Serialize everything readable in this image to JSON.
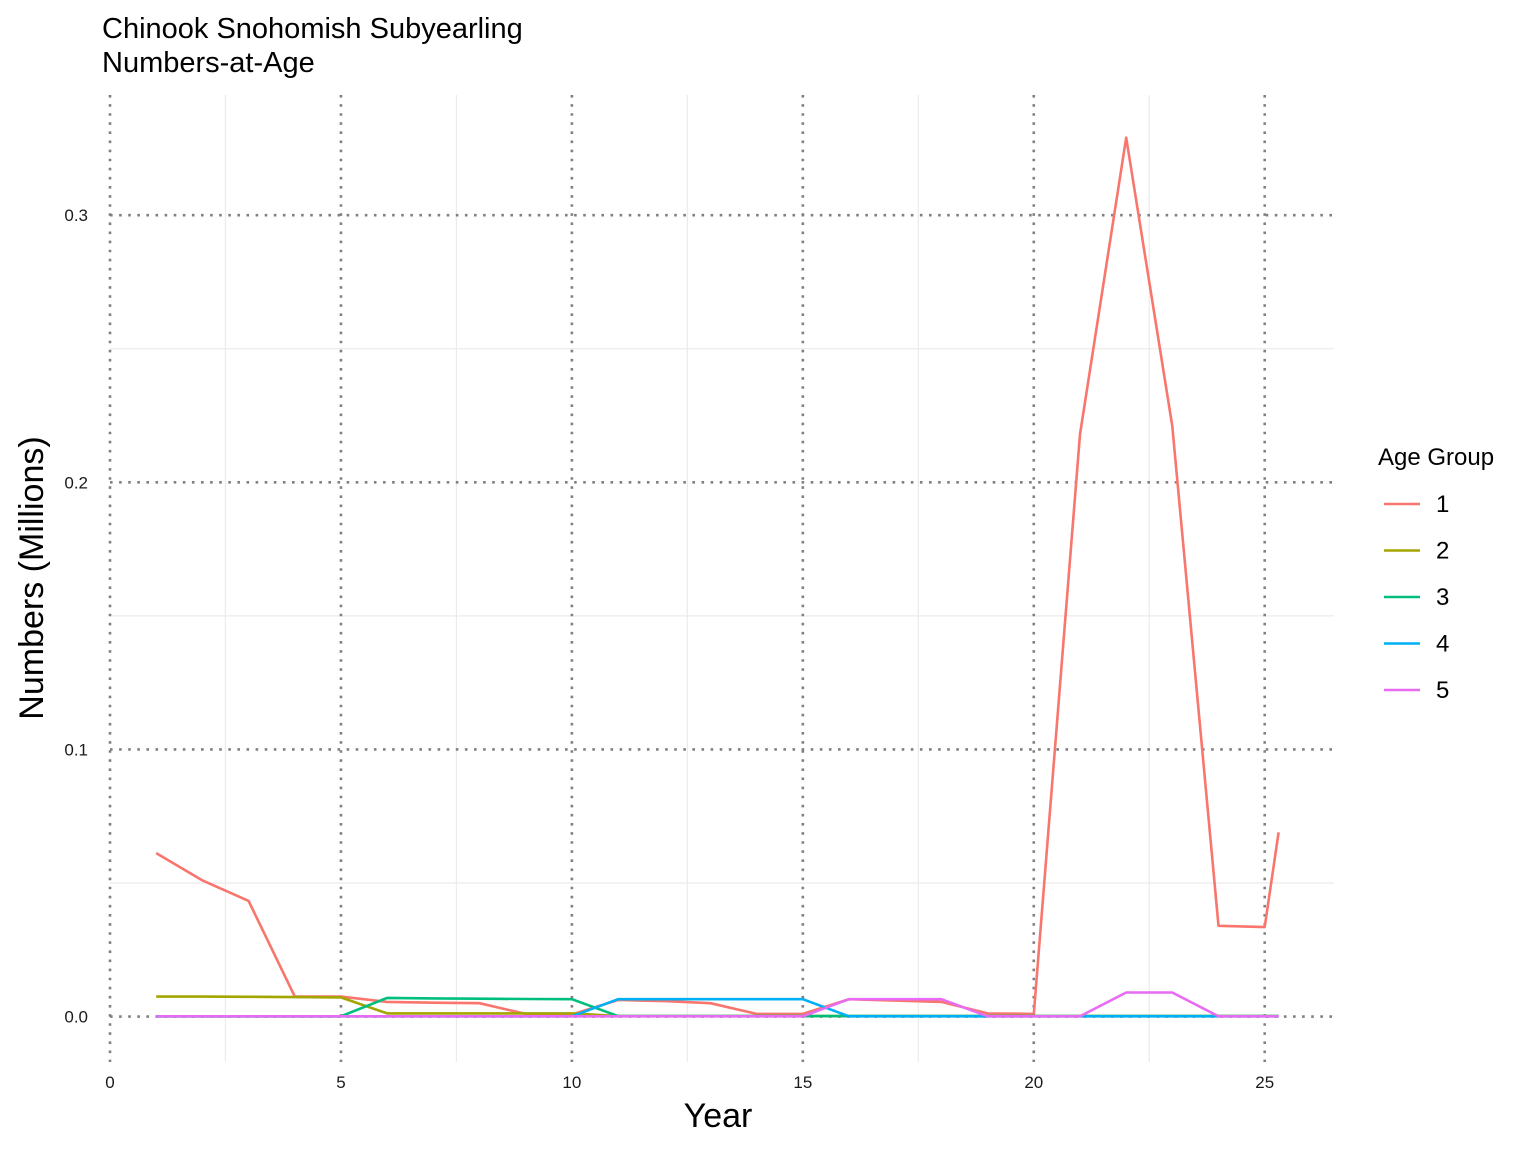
{
  "chart_data": {
    "type": "line",
    "title": "Chinook Snohomish Subyearling",
    "subtitle": "Numbers-at-Age",
    "xlabel": "Year",
    "ylabel": "Numbers (Millions)",
    "xlim": [
      0,
      26.5
    ],
    "ylim": [
      -0.017,
      0.345
    ],
    "x_ticks": [
      0,
      5,
      10,
      15,
      20,
      25
    ],
    "y_ticks": [
      0.0,
      0.1,
      0.2,
      0.3
    ],
    "y_tick_labels": [
      "0.0",
      "0.1",
      "0.2",
      "0.3"
    ],
    "grid": "on",
    "legend": {
      "title": "Age Group",
      "position": "right"
    },
    "series": [
      {
        "name": "1",
        "color": "#F8766D",
        "x": [
          1,
          2,
          3,
          4,
          5,
          6,
          7,
          8,
          9,
          10,
          11,
          12,
          13,
          14,
          15,
          16,
          17,
          18,
          19,
          20,
          21,
          22,
          23,
          24,
          25,
          25.3
        ],
        "y": [
          0.0612,
          0.051,
          0.0433,
          0.0075,
          0.0075,
          0.0055,
          0.0052,
          0.005,
          0.001,
          0.0008,
          0.0062,
          0.0058,
          0.005,
          0.001,
          0.001,
          0.0065,
          0.006,
          0.0055,
          0.0012,
          0.001,
          0.218,
          0.329,
          0.221,
          0.034,
          0.0335,
          0.069
        ]
      },
      {
        "name": "2",
        "color": "#A3A500",
        "x": [
          1,
          2,
          3,
          4,
          5,
          6,
          7,
          8,
          9,
          10,
          11,
          12,
          13,
          14,
          15,
          16,
          17,
          18,
          19,
          20,
          21,
          22,
          23,
          24,
          25,
          25.3
        ],
        "y": [
          0.0075,
          0.0075,
          0.0074,
          0.0073,
          0.0072,
          0.0012,
          0.0012,
          0.0012,
          0.0012,
          0.0012,
          0.0002,
          0.0002,
          0.0002,
          0.0002,
          0.0002,
          0.0002,
          0.0002,
          0.0002,
          0.0002,
          0.0002,
          0.0002,
          0.0002,
          0.0002,
          0.0002,
          0.0002,
          0.0002
        ]
      },
      {
        "name": "3",
        "color": "#00BF7D",
        "x": [
          1,
          2,
          3,
          4,
          5,
          6,
          7,
          8,
          9,
          10,
          11,
          12,
          13,
          14,
          15,
          16,
          17,
          18,
          19,
          20,
          21,
          22,
          23,
          24,
          25,
          25.3
        ],
        "y": [
          0.0001,
          0.0001,
          0.0001,
          0.0001,
          0.0001,
          0.007,
          0.0068,
          0.0067,
          0.0066,
          0.0065,
          0.0002,
          0.0002,
          0.0002,
          0.0002,
          0.0002,
          0.0002,
          0.0002,
          0.0002,
          0.0002,
          0.0002,
          0.0002,
          0.0002,
          0.0002,
          0.0002,
          0.0002,
          0.0002
        ]
      },
      {
        "name": "4",
        "color": "#00B0F6",
        "x": [
          1,
          2,
          3,
          4,
          5,
          6,
          7,
          8,
          9,
          10,
          11,
          12,
          13,
          14,
          15,
          16,
          17,
          18,
          19,
          20,
          21,
          22,
          23,
          24,
          25,
          25.3
        ],
        "y": [
          0.0001,
          0.0001,
          0.0001,
          0.0001,
          0.0001,
          0.0001,
          0.0001,
          0.0001,
          0.0001,
          0.0001,
          0.0065,
          0.0065,
          0.0065,
          0.0065,
          0.0065,
          0.0001,
          0.0001,
          0.0001,
          0.0001,
          0.0001,
          0.0001,
          0.0001,
          0.0001,
          0.0001,
          0.0001,
          0.0001
        ]
      },
      {
        "name": "5",
        "color": "#E76BF3",
        "x": [
          1,
          2,
          3,
          4,
          5,
          6,
          7,
          8,
          9,
          10,
          11,
          12,
          13,
          14,
          15,
          16,
          17,
          18,
          19,
          20,
          21,
          22,
          23,
          24,
          25,
          25.3
        ],
        "y": [
          0.0001,
          0.0001,
          0.0001,
          0.0001,
          0.0001,
          0.0001,
          0.0001,
          0.0001,
          0.0001,
          0.0001,
          0.0001,
          0.0001,
          0.0001,
          0.0001,
          0.0001,
          0.0065,
          0.0065,
          0.0065,
          0.0001,
          0.0001,
          0.0001,
          0.009,
          0.009,
          0.0001,
          0.0001,
          0.0001
        ]
      }
    ]
  }
}
